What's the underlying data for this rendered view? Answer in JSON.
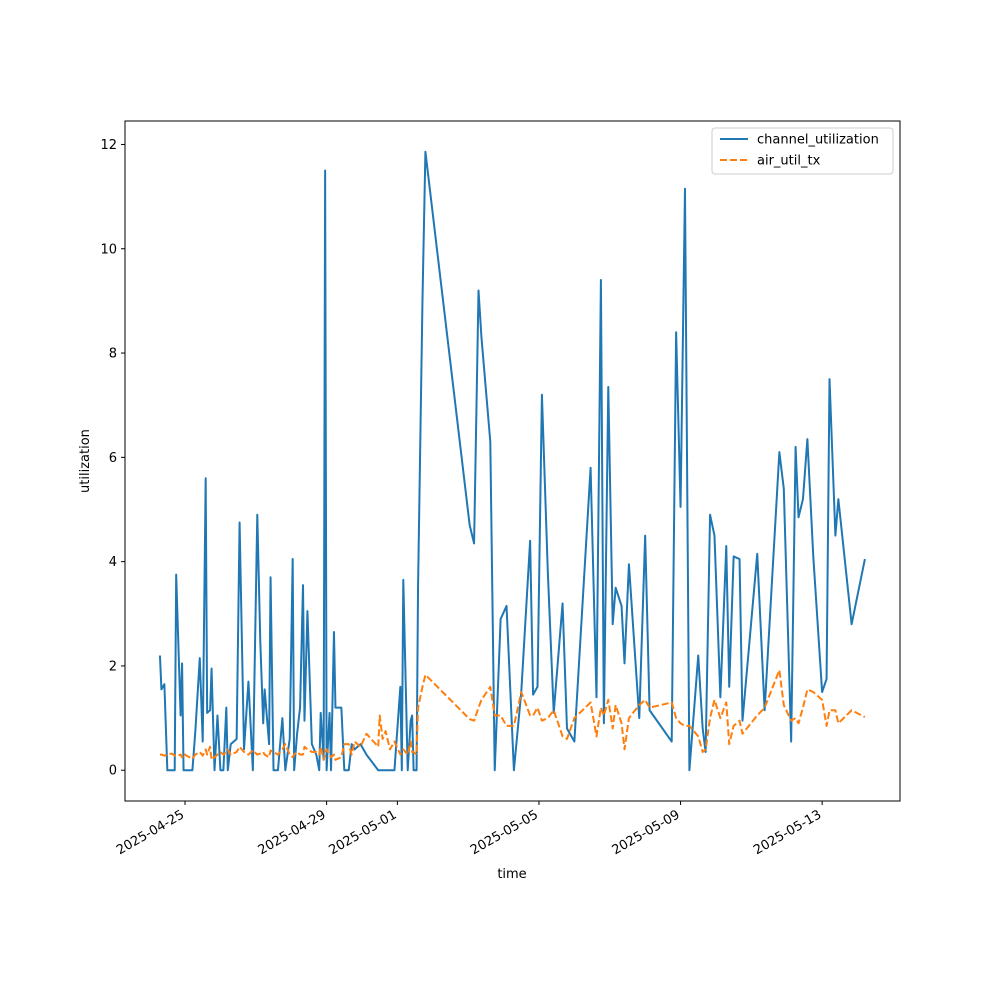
{
  "chart_data": {
    "type": "line",
    "x_label": "time",
    "y_label": "utilization",
    "x": [
      "2025-04-24T07:00",
      "2025-04-24T08:00",
      "2025-04-24T10:00",
      "2025-04-24T12:00",
      "2025-04-24T15:00",
      "2025-04-24T17:00",
      "2025-04-24T18:00",
      "2025-04-24T21:00",
      "2025-04-24T22:00",
      "2025-04-24T23:00",
      "2025-04-25T01:00",
      "2025-04-25T05:00",
      "2025-04-25T07:00",
      "2025-04-25T10:00",
      "2025-04-25T12:00",
      "2025-04-25T14:00",
      "2025-04-25T15:00",
      "2025-04-25T17:00",
      "2025-04-25T18:00",
      "2025-04-25T20:00",
      "2025-04-25T22:00",
      "2025-04-26T00:00",
      "2025-04-26T02:00",
      "2025-04-26T04:00",
      "2025-04-26T05:00",
      "2025-04-26T07:00",
      "2025-04-26T11:00",
      "2025-04-26T13:00",
      "2025-04-26T16:00",
      "2025-04-26T19:00",
      "2025-04-26T22:00",
      "2025-04-27T01:00",
      "2025-04-27T03:00",
      "2025-04-27T05:00",
      "2025-04-27T06:00",
      "2025-04-27T09:00",
      "2025-04-27T10:00",
      "2025-04-27T12:00",
      "2025-04-27T15:00",
      "2025-04-27T18:00",
      "2025-04-27T20:00",
      "2025-04-27T23:00",
      "2025-04-28T01:00",
      "2025-04-28T02:00",
      "2025-04-28T04:00",
      "2025-04-28T06:00",
      "2025-04-28T08:00",
      "2025-04-28T09:00",
      "2025-04-28T11:00",
      "2025-04-28T14:00",
      "2025-04-28T17:00",
      "2025-04-28T19:00",
      "2025-04-28T20:00",
      "2025-04-28T22:00",
      "2025-04-28T23:00",
      "2025-04-29T00:00",
      "2025-04-29T02:00",
      "2025-04-29T03:00",
      "2025-04-29T05:00",
      "2025-04-29T06:00",
      "2025-04-29T10:00",
      "2025-04-29T12:00",
      "2025-04-29T15:00",
      "2025-04-29T17:00",
      "2025-04-29T19:00",
      "2025-04-29T23:00",
      "2025-04-30T03:00",
      "2025-04-30T11:00",
      "2025-04-30T12:00",
      "2025-04-30T14:00",
      "2025-04-30T16:00",
      "2025-04-30T19:00",
      "2025-04-30T22:00",
      "2025-05-01T02:00",
      "2025-05-01T03:00",
      "2025-05-01T04:00",
      "2025-05-01T07:00",
      "2025-05-01T09:00",
      "2025-05-01T10:00",
      "2025-05-01T11:00",
      "2025-05-01T13:00",
      "2025-05-01T14:00",
      "2025-05-01T17:00",
      "2025-05-01T19:00",
      "2025-05-03T01:00",
      "2025-05-03T04:00",
      "2025-05-03T07:00",
      "2025-05-03T09:00",
      "2025-05-03T15:00",
      "2025-05-03T18:00",
      "2025-05-03T22:00",
      "2025-05-04T02:00",
      "2025-05-04T07:00",
      "2025-05-04T12:00",
      "2025-05-04T18:00",
      "2025-05-04T20:00",
      "2025-05-04T23:00",
      "2025-05-05T02:00",
      "2025-05-05T06:00",
      "2025-05-05T10:00",
      "2025-05-05T16:00",
      "2025-05-05T19:00",
      "2025-05-06T00:00",
      "2025-05-06T11:00",
      "2025-05-06T15:00",
      "2025-05-06T18:00",
      "2025-05-06T20:00",
      "2025-05-06T23:00",
      "2025-05-07T02:00",
      "2025-05-07T04:00",
      "2025-05-07T08:00",
      "2025-05-07T10:00",
      "2025-05-07T13:00",
      "2025-05-07T20:00",
      "2025-05-08T00:00",
      "2025-05-08T03:00",
      "2025-05-08T18:00",
      "2025-05-08T21:00",
      "2025-05-09T00:00",
      "2025-05-09T03:00",
      "2025-05-09T06:00",
      "2025-05-09T12:00",
      "2025-05-09T15:00",
      "2025-05-09T17:00",
      "2025-05-09T20:00",
      "2025-05-09T23:00",
      "2025-05-10T03:00",
      "2025-05-10T07:00",
      "2025-05-10T09:00",
      "2025-05-10T12:00",
      "2025-05-10T16:00",
      "2025-05-10T18:00",
      "2025-05-11T04:00",
      "2025-05-11T09:00",
      "2025-05-11T19:00",
      "2025-05-11T22:00",
      "2025-05-12T03:00",
      "2025-05-12T06:00",
      "2025-05-12T08:00",
      "2025-05-12T11:00",
      "2025-05-12T14:00",
      "2025-05-12T18:00",
      "2025-05-13T00:00",
      "2025-05-13T03:00",
      "2025-05-13T05:00",
      "2025-05-13T09:00",
      "2025-05-13T11:00",
      "2025-05-13T20:00",
      "2025-05-14T05:00"
    ],
    "series": [
      {
        "name": "channel_utilization",
        "color": "#1f77b4",
        "dash": false,
        "values": [
          2.2,
          1.55,
          1.65,
          0,
          0,
          0,
          3.75,
          1.05,
          2.05,
          0,
          0,
          0,
          0.75,
          2.15,
          0.55,
          5.6,
          1.1,
          1.15,
          1.95,
          0,
          1.05,
          0,
          0,
          1.2,
          0,
          0.5,
          0.6,
          4.75,
          0.4,
          1.7,
          0,
          4.9,
          2.5,
          0.9,
          1.55,
          0.5,
          3.7,
          0,
          0,
          1.0,
          0,
          0.6,
          4.05,
          0,
          0.7,
          1.2,
          3.55,
          0.95,
          3.05,
          0.5,
          0.3,
          0,
          1.1,
          0.2,
          11.5,
          0,
          1.1,
          0,
          2.65,
          1.2,
          1.2,
          0,
          0,
          0.5,
          0.4,
          0.5,
          0.3,
          0,
          0,
          0,
          0,
          0,
          0,
          1.6,
          0,
          3.65,
          0,
          0.95,
          1.05,
          0,
          0,
          3.5,
          9.0,
          11.86,
          4.7,
          4.35,
          9.2,
          8.3,
          6.3,
          0,
          2.9,
          3.15,
          0,
          1.5,
          4.4,
          1.45,
          1.6,
          7.2,
          3.8,
          1.1,
          3.2,
          0.8,
          0.55,
          5.8,
          1.4,
          9.4,
          0.9,
          7.35,
          2.8,
          3.5,
          3.15,
          2.05,
          3.95,
          1.0,
          4.5,
          1.15,
          0.55,
          8.4,
          5.05,
          11.15,
          0,
          2.2,
          0.8,
          0.35,
          4.9,
          4.5,
          1.4,
          4.3,
          1.6,
          4.1,
          4.05,
          0.95,
          4.15,
          1.15,
          6.1,
          5.4,
          0.55,
          6.2,
          4.85,
          5.2,
          6.35,
          4.1,
          1.5,
          1.75,
          7.5,
          4.5,
          5.2,
          2.8,
          4.05
        ]
      },
      {
        "name": "air_util_tx",
        "color": "#ff7f0e",
        "dash": true,
        "values": [
          0.3,
          0.3,
          0.28,
          0.3,
          0.32,
          0.28,
          0.27,
          0.3,
          0.25,
          0.32,
          0.28,
          0.22,
          0.3,
          0.35,
          0.28,
          0.4,
          0.3,
          0.45,
          0.2,
          0.25,
          0.3,
          0.35,
          0.3,
          0.35,
          0.4,
          0.3,
          0.35,
          0.45,
          0.35,
          0.3,
          0.38,
          0.3,
          0.32,
          0.35,
          0.3,
          0.25,
          0.38,
          0.35,
          0.3,
          0.4,
          0.5,
          0.3,
          0.25,
          0.3,
          0.35,
          0.3,
          0.3,
          0.45,
          0.4,
          0.35,
          0.35,
          0.3,
          0.45,
          0.2,
          0.35,
          0.4,
          0.3,
          0.25,
          0.3,
          0.2,
          0.25,
          0.5,
          0.5,
          0.3,
          0.55,
          0.45,
          0.7,
          0.45,
          1.05,
          0.6,
          0.75,
          0.4,
          0.55,
          0.3,
          0.35,
          0.4,
          0.3,
          0.55,
          0.35,
          0.35,
          0.3,
          1.2,
          1.6,
          1.83,
          0.98,
          0.95,
          1.2,
          1.35,
          1.6,
          1.05,
          1.05,
          0.85,
          0.85,
          1.5,
          1.05,
          1.05,
          1.2,
          0.95,
          1.0,
          1.15,
          0.65,
          0.6,
          1.0,
          1.3,
          0.65,
          1.2,
          1.05,
          1.35,
          0.8,
          1.25,
          0.9,
          0.4,
          1.0,
          1.25,
          1.35,
          1.2,
          1.3,
          1.0,
          0.9,
          0.85,
          0.85,
          0.65,
          0.35,
          0.4,
          1.0,
          1.35,
          1.0,
          1.3,
          0.5,
          0.85,
          0.95,
          0.7,
          1.05,
          1.2,
          1.92,
          1.25,
          0.95,
          1.0,
          0.9,
          1.2,
          1.55,
          1.5,
          1.35,
          0.85,
          1.15,
          1.15,
          0.9,
          1.15,
          1.02
        ]
      }
    ],
    "xlim": [
      "2025-04-23T07:18",
      "2025-05-15T04:48"
    ],
    "xticks": [
      "2025-04-25",
      "2025-04-29",
      "2025-05-01",
      "2025-05-05",
      "2025-05-09",
      "2025-05-13"
    ],
    "ylim": [
      -0.59,
      12.45
    ],
    "yticks": [
      0,
      2,
      4,
      6,
      8,
      10,
      12
    ],
    "legend": "upper right",
    "grid": false
  }
}
